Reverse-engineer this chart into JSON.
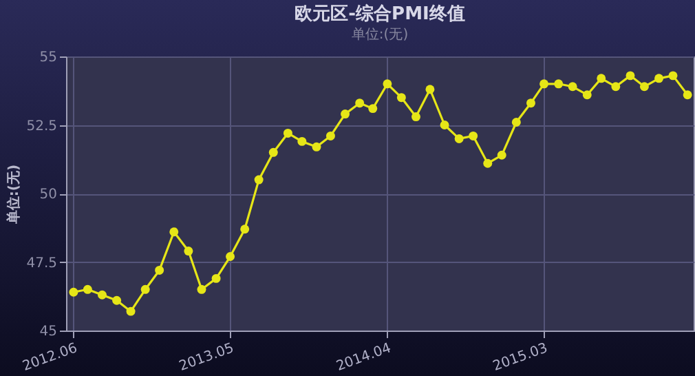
{
  "chart_data": {
    "type": "line",
    "title": "欧元区-综合PMI终值",
    "subtitle": "单位:(无)",
    "ylabel": "单位:(无)",
    "x": [
      "2012-06",
      "2012-07",
      "2012-08",
      "2012-09",
      "2012-10",
      "2012-11",
      "2012-12",
      "2013-01",
      "2013-02",
      "2013-03",
      "2013-04",
      "2013-05",
      "2013-06",
      "2013-07",
      "2013-08",
      "2013-09",
      "2013-10",
      "2013-11",
      "2013-12",
      "2014-01",
      "2014-02",
      "2014-03",
      "2014-04",
      "2014-05",
      "2014-06",
      "2014-07",
      "2014-08",
      "2014-09",
      "2014-10",
      "2014-11",
      "2014-12",
      "2015-01",
      "2015-02",
      "2015-03",
      "2015-04",
      "2015-05",
      "2015-06",
      "2015-07",
      "2015-08",
      "2015-09",
      "2015-10",
      "2015-11",
      "2015-12",
      "2016-01"
    ],
    "series": [
      {
        "color": "#e6e617",
        "values": [
          46.4,
          46.5,
          46.3,
          46.1,
          45.7,
          46.5,
          47.2,
          48.6,
          47.9,
          46.5,
          46.9,
          47.7,
          48.7,
          50.5,
          51.5,
          52.2,
          51.9,
          51.7,
          52.1,
          52.9,
          53.3,
          53.1,
          54.0,
          53.5,
          52.8,
          53.8,
          52.5,
          52.0,
          52.1,
          51.1,
          51.4,
          52.6,
          53.3,
          54.0,
          54.0,
          53.9,
          53.6,
          54.2,
          53.9,
          54.3,
          53.9,
          54.2,
          54.3,
          53.6
        ]
      }
    ],
    "xlim": [
      "2012-05-16",
      "2016-01-14"
    ],
    "xticks": [
      {
        "value": "2012-06",
        "label": "2012.06"
      },
      {
        "value": "2013-05",
        "label": "2013.05"
      },
      {
        "value": "2014-04",
        "label": "2014.04"
      },
      {
        "value": "2015-03",
        "label": "2015.03"
      }
    ],
    "ylim": [
      45,
      55
    ],
    "yticks": [
      45,
      47.5,
      50,
      52.5,
      55
    ],
    "grid": true,
    "marker": "circle",
    "line_style": "solid",
    "legend": false
  }
}
